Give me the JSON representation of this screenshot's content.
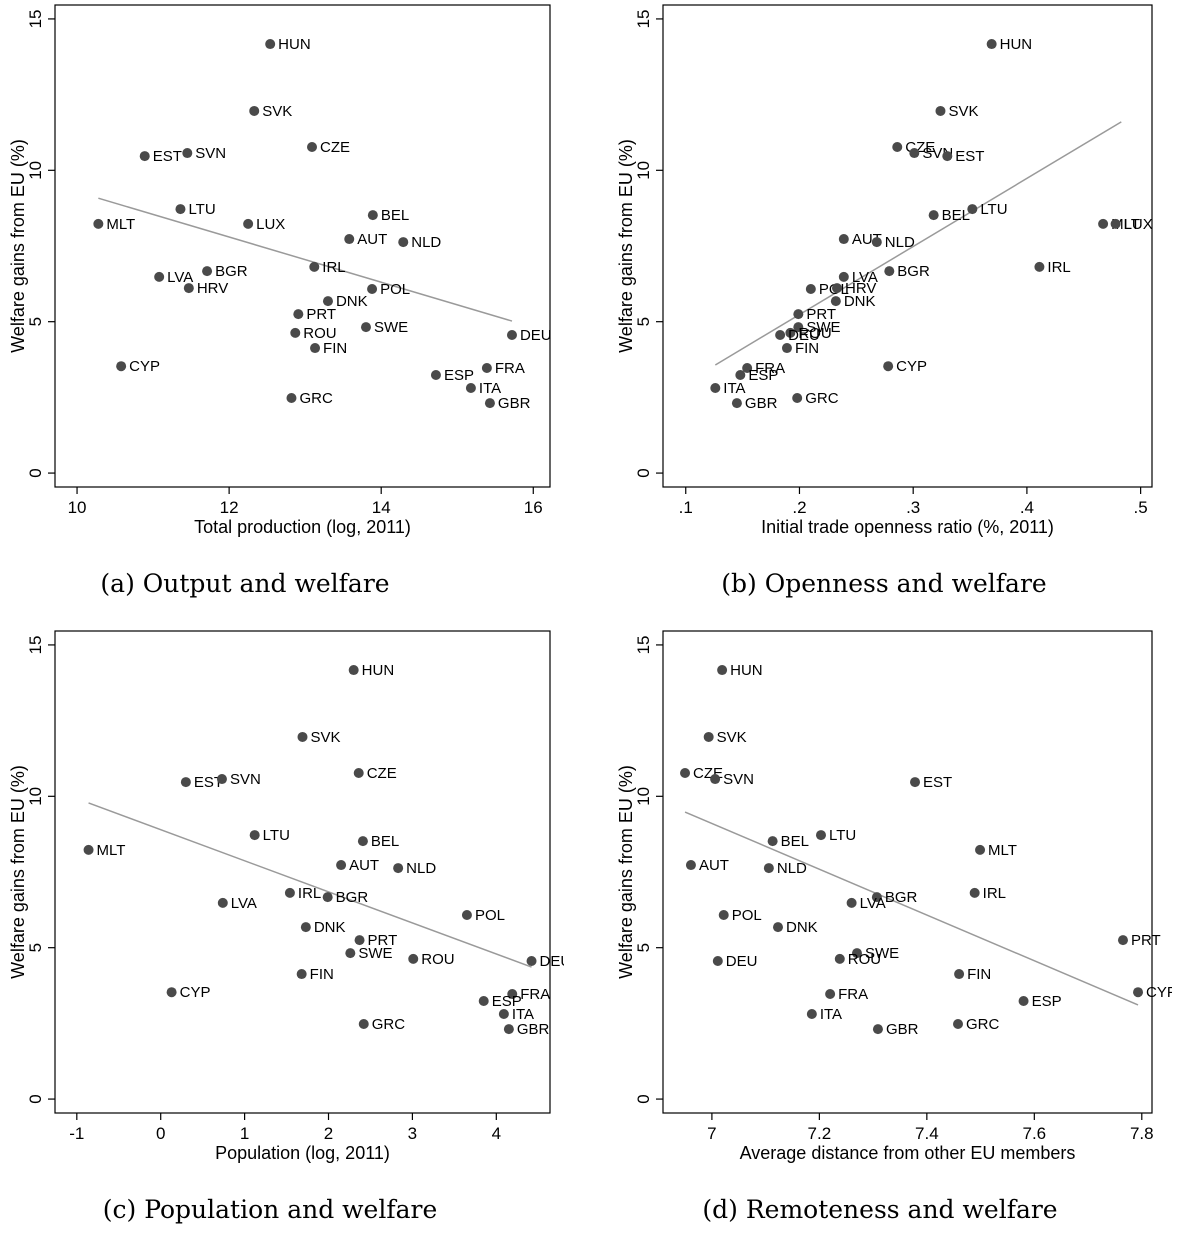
{
  "chart_data": [
    {
      "type": "scatter",
      "subtitle": "(a) Output and welfare",
      "xlabel": "Total production (log, 2011)",
      "ylabel": "Welfare gains from EU (%)",
      "color": "#4a4a4a",
      "fit_color": "#9a9a9a",
      "labels": [
        "HUN",
        "SVK",
        "EST",
        "SVN",
        "CZE",
        "LTU",
        "MLT",
        "LUX",
        "BEL",
        "AUT",
        "NLD",
        "IRL",
        "LVA",
        "BGR",
        "HRV",
        "POL",
        "DNK",
        "PRT",
        "ROU",
        "SWE",
        "DEU",
        "FIN",
        "CYP",
        "FRA",
        "ESP",
        "ITA",
        "GRC",
        "GBR"
      ],
      "x": [
        12.54,
        12.33,
        10.89,
        11.45,
        13.09,
        11.36,
        10.28,
        12.25,
        13.89,
        13.58,
        14.29,
        13.12,
        11.08,
        11.71,
        11.47,
        13.88,
        13.3,
        12.91,
        12.87,
        13.8,
        15.72,
        13.13,
        10.58,
        15.39,
        14.72,
        15.18,
        12.82,
        15.43
      ],
      "y": [
        14.17,
        11.96,
        10.47,
        10.57,
        10.77,
        8.72,
        8.23,
        8.23,
        8.52,
        7.73,
        7.63,
        6.81,
        6.48,
        6.67,
        6.11,
        6.08,
        5.68,
        5.25,
        4.63,
        4.82,
        4.56,
        4.13,
        3.53,
        3.47,
        3.24,
        2.81,
        2.48,
        2.31
      ],
      "fit_line": {
        "x": [
          10.28,
          15.72
        ],
        "y": [
          9.08,
          5.02
        ]
      },
      "xlim": [
        9.71,
        16.22
      ],
      "ylim": [
        -0.46,
        15.46
      ],
      "xticks": [
        10,
        12,
        14,
        16
      ],
      "yticks": [
        0,
        5,
        10,
        15
      ]
    },
    {
      "type": "scatter",
      "subtitle": "(b) Openness and welfare",
      "xlabel": "Initial trade openness ratio (%, 2011)",
      "ylabel": "Welfare gains from EU (%)",
      "color": "#4a4a4a",
      "fit_color": "#9a9a9a",
      "labels": [
        "HUN",
        "SVK",
        "CZE",
        "SVN",
        "EST",
        "LTU",
        "BEL",
        "MLT",
        "LUX",
        "AUT",
        "NLD",
        "IRL",
        "LVA",
        "BGR",
        "POL",
        "HRV",
        "DNK",
        "PRT",
        "SWE",
        "ROU",
        "DEU",
        "FIN",
        "CYP",
        "FRA",
        "ESP",
        "ITA",
        "GBR",
        "GRC"
      ],
      "x": [
        0.369,
        0.324,
        0.286,
        0.301,
        0.33,
        0.352,
        0.318,
        0.467,
        0.478,
        0.239,
        0.268,
        0.411,
        0.239,
        0.279,
        0.21,
        0.233,
        0.232,
        0.199,
        0.199,
        0.192,
        0.183,
        0.189,
        0.278,
        0.154,
        0.148,
        0.126,
        0.145,
        0.198
      ],
      "y": [
        14.17,
        11.96,
        10.77,
        10.57,
        10.47,
        8.72,
        8.52,
        8.23,
        8.23,
        7.73,
        7.63,
        6.81,
        6.48,
        6.67,
        6.08,
        6.11,
        5.68,
        5.25,
        4.82,
        4.63,
        4.56,
        4.13,
        3.53,
        3.47,
        3.24,
        2.81,
        2.31,
        2.48
      ],
      "fit_line": {
        "x": [
          0.126,
          0.483
        ],
        "y": [
          3.57,
          11.6
        ]
      },
      "xlim": [
        0.08,
        0.51
      ],
      "ylim": [
        -0.46,
        15.46
      ],
      "xticks": [
        {
          "value": 0.1,
          "label": ".1"
        },
        {
          "value": 0.2,
          "label": ".2"
        },
        {
          "value": 0.3,
          "label": ".3"
        },
        {
          "value": 0.4,
          "label": ".4"
        },
        {
          "value": 0.5,
          "label": ".5"
        }
      ],
      "yticks": [
        0,
        5,
        10,
        15
      ]
    },
    {
      "type": "scatter",
      "subtitle": "(c) Population and welfare",
      "xlabel": "Population (log, 2011)",
      "ylabel": "Welfare gains from EU (%)",
      "color": "#4a4a4a",
      "fit_color": "#9a9a9a",
      "labels": [
        "HUN",
        "SVK",
        "EST",
        "SVN",
        "CZE",
        "LTU",
        "MLT",
        "BEL",
        "AUT",
        "NLD",
        "IRL",
        "BGR",
        "LVA",
        "POL",
        "DNK",
        "PRT",
        "SWE",
        "ROU",
        "DEU",
        "FIN",
        "CYP",
        "FRA",
        "ESP",
        "ITA",
        "GRC",
        "GBR"
      ],
      "x": [
        2.3,
        1.69,
        0.3,
        0.73,
        2.36,
        1.12,
        -0.86,
        2.41,
        2.15,
        2.83,
        1.54,
        1.99,
        0.74,
        3.65,
        1.73,
        2.37,
        2.26,
        3.01,
        4.42,
        1.68,
        0.13,
        4.19,
        3.85,
        4.09,
        2.42,
        4.15
      ],
      "y": [
        14.17,
        11.96,
        10.47,
        10.57,
        10.77,
        8.72,
        8.23,
        8.52,
        7.73,
        7.63,
        6.81,
        6.67,
        6.48,
        6.08,
        5.68,
        5.25,
        4.82,
        4.63,
        4.56,
        4.13,
        3.53,
        3.47,
        3.24,
        2.81,
        2.48,
        2.31
      ],
      "fit_line": {
        "x": [
          -0.86,
          4.42
        ],
        "y": [
          9.78,
          4.36
        ]
      },
      "xlim": [
        -1.26,
        4.64
      ],
      "ylim": [
        -0.46,
        15.46
      ],
      "xticks": [
        -1,
        0,
        1,
        2,
        3,
        4
      ],
      "yticks": [
        0,
        5,
        10,
        15
      ]
    },
    {
      "type": "scatter",
      "subtitle": "(d) Remoteness and welfare",
      "xlabel": "Average distance from other EU members",
      "ylabel": "Welfare gains from EU (%)",
      "color": "#4a4a4a",
      "fit_color": "#9a9a9a",
      "labels": [
        "HUN",
        "SVK",
        "CZE",
        "SVN",
        "EST",
        "BEL",
        "LTU",
        "MLT",
        "AUT",
        "NLD",
        "IRL",
        "BGR",
        "LVA",
        "POL",
        "DNK",
        "PRT",
        "SWE",
        "ROU",
        "DEU",
        "FIN",
        "CYP",
        "FRA",
        "ESP",
        "ITA",
        "GRC",
        "GBR"
      ],
      "x": [
        7.019,
        6.994,
        6.95,
        7.006,
        7.378,
        7.113,
        7.203,
        7.499,
        6.961,
        7.106,
        7.489,
        7.307,
        7.26,
        7.022,
        7.123,
        7.765,
        7.27,
        7.238,
        7.011,
        7.46,
        7.793,
        7.22,
        7.58,
        7.186,
        7.458,
        7.309
      ],
      "y": [
        14.17,
        11.96,
        10.77,
        10.57,
        10.47,
        8.52,
        8.72,
        8.23,
        7.73,
        7.63,
        6.81,
        6.67,
        6.48,
        6.08,
        5.68,
        5.25,
        4.82,
        4.63,
        4.56,
        4.13,
        3.53,
        3.47,
        3.24,
        2.81,
        2.48,
        2.31
      ],
      "fit_line": {
        "x": [
          6.95,
          7.793
        ],
        "y": [
          9.48,
          3.11
        ]
      },
      "xlim": [
        6.909,
        7.819
      ],
      "ylim": [
        -0.46,
        15.46
      ],
      "xticks": [
        7,
        7.2,
        7.4,
        7.6,
        7.8
      ],
      "yticks": [
        0,
        5,
        10,
        15
      ]
    }
  ]
}
